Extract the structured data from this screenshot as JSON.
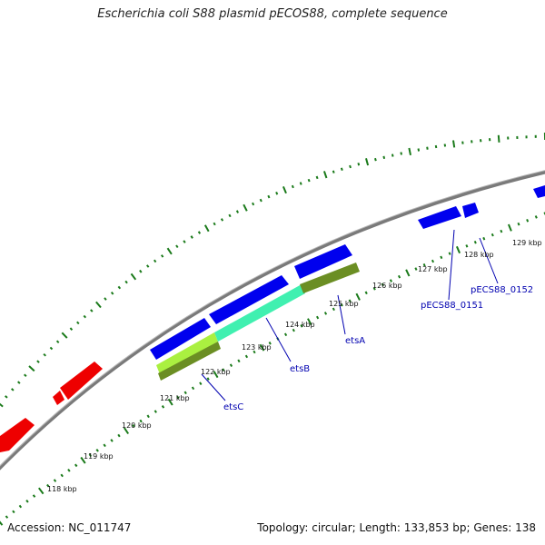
{
  "title": "Escherichia coli S88 plasmid pECOS88, complete sequence",
  "footer": {
    "accession": "Accession: NC_011747",
    "summary": "Topology: circular; Length: 133,853 bp; Genes: 138"
  },
  "map": {
    "topology": "circular",
    "length_bp": 133853,
    "ticks_kbp": [
      118,
      119,
      120,
      121,
      122,
      123,
      124,
      125,
      126,
      127,
      128,
      129
    ],
    "tick_unit": "kbp",
    "gene_labels": [
      "etsA",
      "etsB",
      "etsC",
      "pECS88_0151",
      "pECS88_0152"
    ],
    "colors": {
      "backbone": "#808080",
      "gc_ticks": "#1a7a1a",
      "forward_genes": "#0000ee",
      "reverse_genes": "#ee0000",
      "operon_light": "#aaf040",
      "operon_cyan": "#40f0b0",
      "operon_olive": "#6b8e23",
      "label_text": "#0000b0"
    }
  }
}
